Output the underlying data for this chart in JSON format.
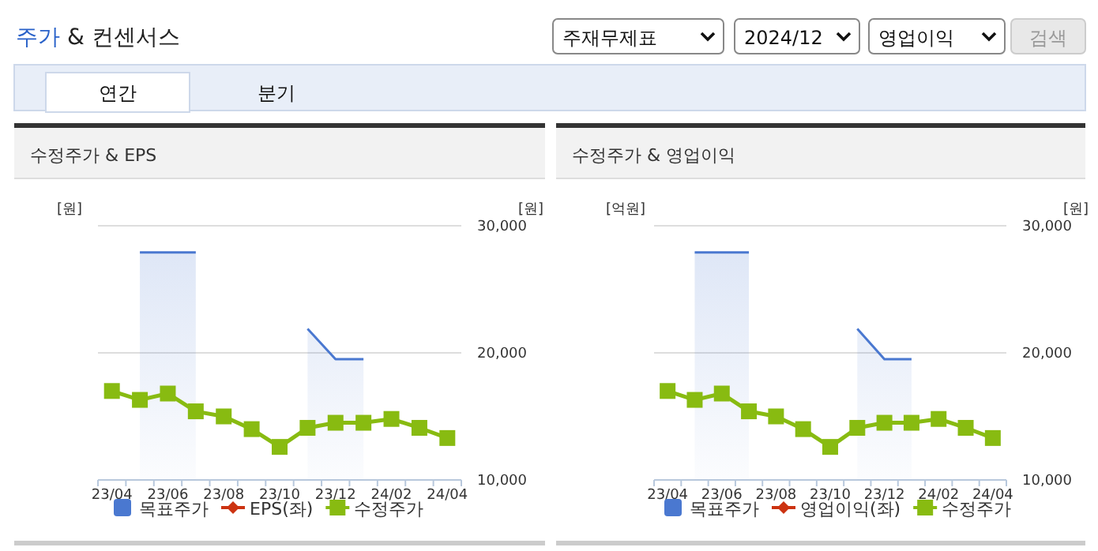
{
  "chart_data": [
    {
      "type": "other",
      "title": "주가 & 컨센서스",
      "annotations": [
        "주재무제표",
        "2024/12",
        "영업이익",
        "검색",
        "연간",
        "분기"
      ]
    },
    {
      "type": "line",
      "title": "수정주가 & EPS",
      "ylabel": "[원]",
      "y2label": "[원]",
      "categories": [
        "23/04",
        null,
        "23/06",
        null,
        "23/08",
        null,
        "23/10",
        null,
        "23/12",
        null,
        "24/02",
        null,
        "24/04"
      ],
      "y2lim": [
        10000,
        30000
      ],
      "y2ticks": [
        {
          "value": 10000,
          "label": "10,000"
        },
        {
          "value": 20000,
          "label": "20,000"
        },
        {
          "value": 30000,
          "label": "30,000"
        }
      ],
      "grid": "y",
      "legend": "bottom",
      "series": [
        {
          "name": "목표주가",
          "type": "area",
          "axis": "y2",
          "color": "#4a78d0",
          "values": [
            null,
            27900,
            27900,
            27900,
            null,
            null,
            null,
            21900,
            19500,
            19500,
            null,
            null,
            null
          ]
        },
        {
          "name": "EPS(좌)",
          "type": "line",
          "axis": "y",
          "color": "#cc3311",
          "marker": "diamond",
          "values": [
            null,
            null,
            null,
            null,
            null,
            null,
            null,
            null,
            null,
            null,
            null,
            null,
            null
          ]
        },
        {
          "name": "수정주가",
          "type": "line",
          "axis": "y2",
          "color": "#88bb11",
          "marker": "square",
          "values": [
            17000,
            16300,
            16800,
            15400,
            15000,
            14000,
            12600,
            14100,
            14500,
            14500,
            14800,
            14100,
            13300
          ]
        }
      ]
    },
    {
      "type": "line",
      "title": "수정주가 & 영업이익",
      "ylabel": "[억원]",
      "y2label": "[원]",
      "categories": [
        "23/04",
        null,
        "23/06",
        null,
        "23/08",
        null,
        "23/10",
        null,
        "23/12",
        null,
        "24/02",
        null,
        "24/04"
      ],
      "y2lim": [
        10000,
        30000
      ],
      "y2ticks": [
        {
          "value": 10000,
          "label": "10,000"
        },
        {
          "value": 20000,
          "label": "20,000"
        },
        {
          "value": 30000,
          "label": "30,000"
        }
      ],
      "grid": "y",
      "legend": "bottom",
      "series": [
        {
          "name": "목표주가",
          "type": "area",
          "axis": "y2",
          "color": "#4a78d0",
          "values": [
            null,
            27900,
            27900,
            27900,
            null,
            null,
            null,
            21900,
            19500,
            19500,
            null,
            null,
            null
          ]
        },
        {
          "name": "영업이익(좌)",
          "type": "line",
          "axis": "y",
          "color": "#cc3311",
          "marker": "diamond",
          "values": [
            null,
            null,
            null,
            null,
            null,
            null,
            null,
            null,
            null,
            null,
            null,
            null,
            null
          ]
        },
        {
          "name": "수정주가",
          "type": "line",
          "axis": "y2",
          "color": "#88bb11",
          "marker": "square",
          "values": [
            17000,
            16300,
            16800,
            15400,
            15000,
            14000,
            12600,
            14100,
            14500,
            14500,
            14800,
            14100,
            13300
          ]
        }
      ]
    }
  ]
}
